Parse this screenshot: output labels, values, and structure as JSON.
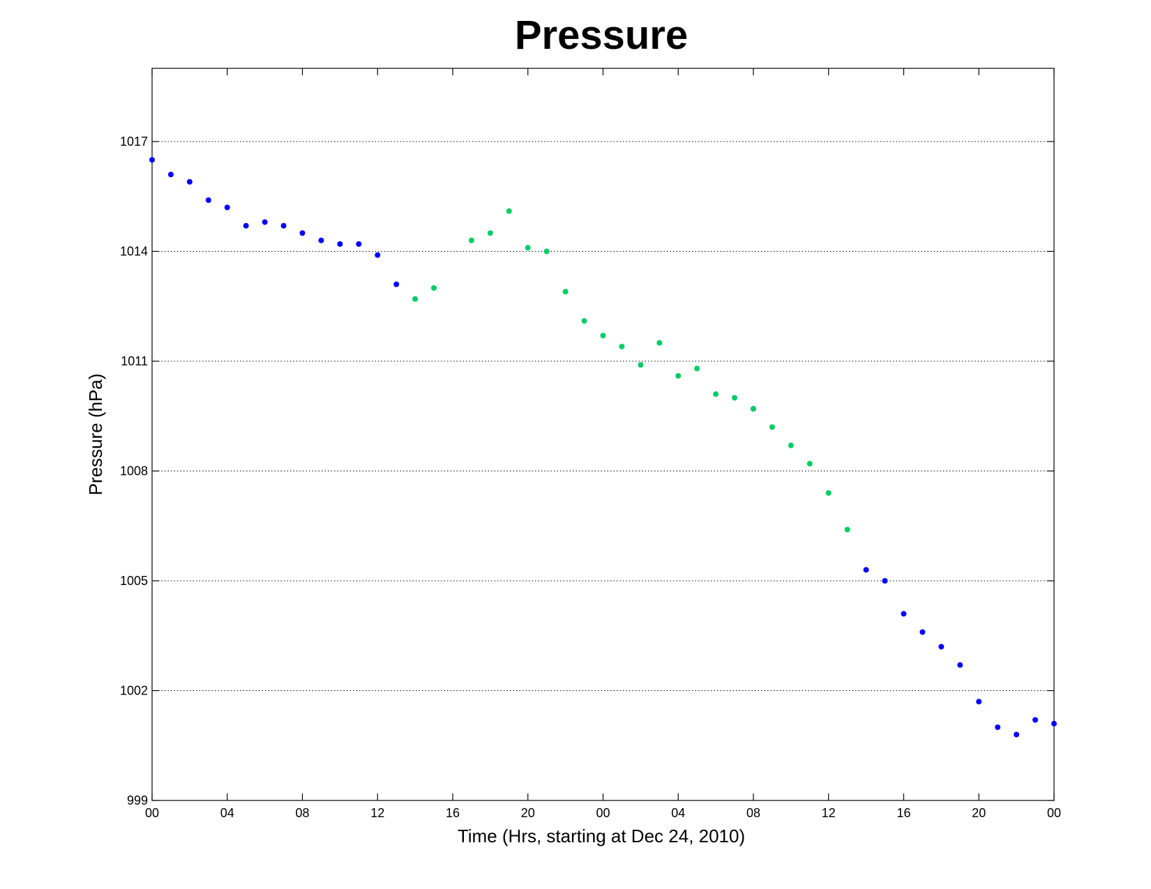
{
  "chart_data": {
    "type": "scatter",
    "title": "Pressure",
    "xlabel": "Time (Hrs, starting at Dec 24, 2010)",
    "ylabel": "Pressure (hPa)",
    "ylim": [
      999,
      1019
    ],
    "xlim": [
      0,
      48
    ],
    "yticks": [
      999,
      1002,
      1005,
      1008,
      1011,
      1014,
      1017
    ],
    "xtick_positions": [
      0,
      4,
      8,
      12,
      16,
      20,
      24,
      28,
      32,
      36,
      40,
      44,
      48
    ],
    "xtick_labels": [
      "00",
      "04",
      "08",
      "12",
      "16",
      "20",
      "00",
      "04",
      "08",
      "12",
      "16",
      "20",
      "00"
    ],
    "grid": "horizontal dotted",
    "series": [
      {
        "color": "#0000ff",
        "points": [
          [
            0,
            1016.5
          ],
          [
            1,
            1016.1
          ],
          [
            2,
            1015.9
          ],
          [
            3,
            1015.4
          ],
          [
            4,
            1015.2
          ],
          [
            5,
            1014.7
          ],
          [
            6,
            1014.8
          ],
          [
            7,
            1014.7
          ],
          [
            8,
            1014.5
          ],
          [
            9,
            1014.3
          ],
          [
            10,
            1014.2
          ],
          [
            11,
            1014.2
          ],
          [
            12,
            1013.9
          ],
          [
            13,
            1013.1
          ],
          [
            32,
            1009.7
          ],
          [
            38,
            1005.3
          ],
          [
            39,
            1005.0
          ],
          [
            40,
            1004.1
          ],
          [
            41,
            1003.6
          ],
          [
            42,
            1003.2
          ],
          [
            43,
            1002.7
          ],
          [
            44,
            1001.7
          ],
          [
            45,
            1001.0
          ],
          [
            46,
            1000.8
          ],
          [
            47,
            1001.2
          ],
          [
            48,
            1001.1
          ]
        ]
      },
      {
        "color": "#00cc66",
        "points": [
          [
            14,
            1012.7
          ],
          [
            15,
            1013.0
          ],
          [
            17,
            1014.3
          ],
          [
            18,
            1014.5
          ],
          [
            19,
            1015.1
          ],
          [
            20,
            1014.1
          ],
          [
            21,
            1014.0
          ],
          [
            22,
            1012.9
          ],
          [
            23,
            1012.1
          ],
          [
            24,
            1011.7
          ],
          [
            25,
            1011.4
          ],
          [
            26,
            1010.9
          ],
          [
            27,
            1011.5
          ],
          [
            28,
            1010.6
          ],
          [
            29,
            1010.8
          ],
          [
            30,
            1010.1
          ],
          [
            31,
            1010.0
          ],
          [
            32,
            1009.7
          ],
          [
            33,
            1009.2
          ],
          [
            34,
            1008.7
          ],
          [
            35,
            1008.2
          ],
          [
            36,
            1007.4
          ],
          [
            37,
            1006.4
          ]
        ]
      }
    ]
  }
}
